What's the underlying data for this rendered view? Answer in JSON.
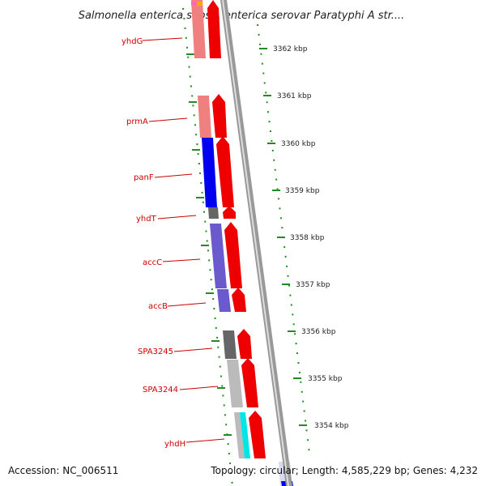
{
  "title": "Salmonella enterica subsp. enterica serovar Paratyphi A str....",
  "footer": {
    "accession": "Accession: NC_006511",
    "summary": "Topology: circular; Length: 4,585,229 bp; Genes: 4,232"
  },
  "scale_labels": [
    "3362 kbp",
    "3361 kbp",
    "3360 kbp",
    "3359 kbp",
    "3358 kbp",
    "3357 kbp",
    "3356 kbp",
    "3355 kbp",
    "3354 kbp"
  ],
  "genes": [
    {
      "name": "yhdG",
      "color": "#f08080"
    },
    {
      "name": "prmA",
      "color": "#f08080"
    },
    {
      "name": "panF",
      "color": "#0000ee"
    },
    {
      "name": "yhdT",
      "color": "#666666"
    },
    {
      "name": "accC",
      "color": "#6a5acd"
    },
    {
      "name": "accB",
      "color": "#6a5acd"
    },
    {
      "name": "SPA3245",
      "color": "#666666"
    },
    {
      "name": "SPA3244",
      "color": "#bbbbbb"
    },
    {
      "name": "yhdH",
      "color": "#bbbbbb"
    }
  ],
  "colors": {
    "arrow": "#ee0000",
    "label": "#cc0000",
    "ticks": "#228b22",
    "backbone": "#999999",
    "cyan": "#00e5e5"
  }
}
